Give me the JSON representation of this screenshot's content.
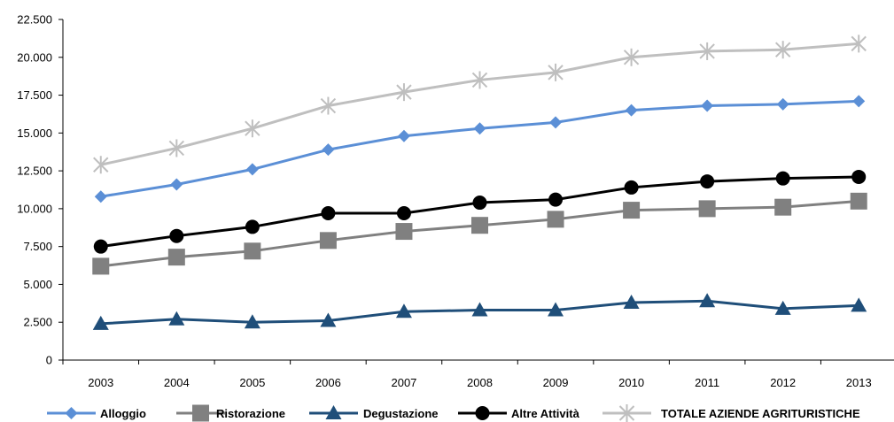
{
  "chart_data": {
    "type": "line",
    "title": "",
    "xlabel": "",
    "ylabel": "",
    "categories": [
      "2003",
      "2004",
      "2005",
      "2006",
      "2007",
      "2008",
      "2009",
      "2010",
      "2011",
      "2012",
      "2013"
    ],
    "ylim": [
      0,
      22500
    ],
    "yticks": [
      0,
      2500,
      5000,
      7500,
      10000,
      12500,
      15000,
      17500,
      20000,
      22500
    ],
    "ytick_labels": [
      "0",
      "2.500",
      "5.000",
      "7.500",
      "10.000",
      "12.500",
      "15.000",
      "17.500",
      "20.000",
      "22.500"
    ],
    "grid": false,
    "legend_position": "bottom",
    "series": [
      {
        "name": "Alloggio",
        "marker": "diamond",
        "color": "#5B8FD6",
        "values": [
          10800,
          11600,
          12600,
          13900,
          14800,
          15300,
          15700,
          16500,
          16800,
          16900,
          17100
        ]
      },
      {
        "name": "Ristorazione",
        "marker": "square",
        "color": "#808080",
        "values": [
          6200,
          6800,
          7200,
          7900,
          8500,
          8900,
          9300,
          9900,
          10000,
          10100,
          10500
        ]
      },
      {
        "name": "Degustazione",
        "marker": "triangle",
        "color": "#1F4E79",
        "values": [
          2400,
          2700,
          2500,
          2600,
          3200,
          3300,
          3300,
          3800,
          3900,
          3400,
          3600
        ]
      },
      {
        "name": "Altre Attività",
        "marker": "circle",
        "color": "#000000",
        "values": [
          7500,
          8200,
          8800,
          9700,
          9700,
          10400,
          10600,
          11400,
          11800,
          12000,
          12100
        ]
      },
      {
        "name": "TOTALE AZIENDE AGRITURISTICHE",
        "marker": "star",
        "color": "#BFBFBF",
        "values": [
          12900,
          14000,
          15300,
          16800,
          17700,
          18500,
          19000,
          20000,
          20400,
          20500,
          20900
        ]
      }
    ]
  }
}
